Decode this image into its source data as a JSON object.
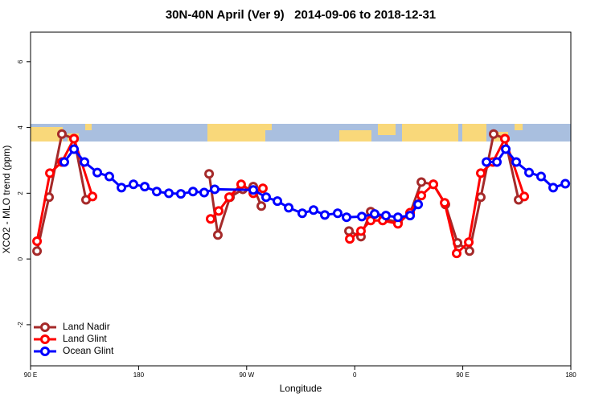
{
  "chart_data": {
    "type": "line",
    "title": "30N-40N April (Ver 9)   2014-09-06 to 2018-12-31",
    "x_label": "Longitude",
    "y_label": "XCO2 - MLO trend (ppm)",
    "xlim": [
      90,
      540
    ],
    "xticks": [
      {
        "value": 90,
        "label": "90 E"
      },
      180,
      {
        "value": 270,
        "label": "90 W"
      },
      {
        "value": 360,
        "label": "0"
      },
      {
        "value": 450,
        "label": "90 E"
      },
      {
        "value": 540,
        "label": "180"
      }
    ],
    "ylim": [
      -3.25,
      6.9
    ],
    "yticks": [
      -2,
      0,
      2,
      4,
      6
    ],
    "legend": "bottom-left",
    "series": [
      {
        "name": "Land Nadir",
        "color": "#a52a2a",
        "x": [
          95.4,
          105.4,
          116.1,
          126.2,
          136.2,
          null,
          238.7,
          246.0,
          256.1,
          266.8,
          275.5,
          282.2,
          null,
          355.2,
          365.2,
          373.3,
          384.6,
          396.0,
          406.1,
          415.5,
          425.5,
          435.5,
          445.6,
          455.6,
          465.0,
          475.7,
          485.1,
          496.5
        ],
        "values": [
          0.24,
          1.88,
          3.8,
          3.66,
          1.8,
          null,
          2.59,
          0.73,
          1.88,
          2.12,
          2.2,
          1.61,
          null,
          0.85,
          0.68,
          1.44,
          1.22,
          1.12,
          1.39,
          2.34,
          2.27,
          1.66,
          0.49,
          0.24,
          1.88,
          3.8,
          3.66,
          1.8
        ]
      },
      {
        "name": "Land Glint",
        "color": "#ff0000",
        "x": [
          95.4,
          106.1,
          116.1,
          126.2,
          141.6,
          null,
          240.0,
          246.7,
          255.4,
          265.4,
          275.5,
          283.5,
          null,
          355.9,
          365.2,
          373.3,
          383.3,
          396.0,
          406.1,
          415.5,
          425.5,
          434.9,
          444.9,
          455.0,
          465.0,
          475.1,
          485.1,
          501.2
        ],
        "values": [
          0.54,
          2.61,
          2.95,
          3.66,
          1.9,
          null,
          1.22,
          1.46,
          1.88,
          2.27,
          2.0,
          2.15,
          null,
          0.61,
          0.85,
          1.17,
          1.17,
          1.07,
          1.41,
          1.93,
          2.27,
          1.71,
          0.17,
          0.51,
          2.61,
          2.95,
          3.66,
          1.9
        ]
      },
      {
        "name": "Ocean Glint",
        "color": "#0000ff",
        "x": [
          118.1,
          126.2,
          134.9,
          145.6,
          155.6,
          165.7,
          175.7,
          185.1,
          195.1,
          205.2,
          215.2,
          225.3,
          234.6,
          243.4,
          275.5,
          286.2,
          295.6,
          305.0,
          316.3,
          325.7,
          335.1,
          345.8,
          353.2,
          365.9,
          376.6,
          386.0,
          396.0,
          406.1,
          412.8,
          null,
          469.7,
          478.4,
          485.8,
          494.5,
          505.2,
          515.2,
          525.3,
          535.4
        ],
        "values": [
          2.95,
          3.34,
          2.95,
          2.63,
          2.51,
          2.17,
          2.27,
          2.2,
          2.05,
          2.0,
          1.98,
          2.05,
          2.02,
          2.12,
          2.1,
          1.88,
          1.76,
          1.56,
          1.39,
          1.49,
          1.34,
          1.39,
          1.27,
          1.29,
          1.37,
          1.32,
          1.27,
          1.32,
          1.66,
          null,
          2.95,
          2.95,
          3.34,
          2.95,
          2.63,
          2.51,
          2.17,
          2.29
        ]
      }
    ]
  }
}
